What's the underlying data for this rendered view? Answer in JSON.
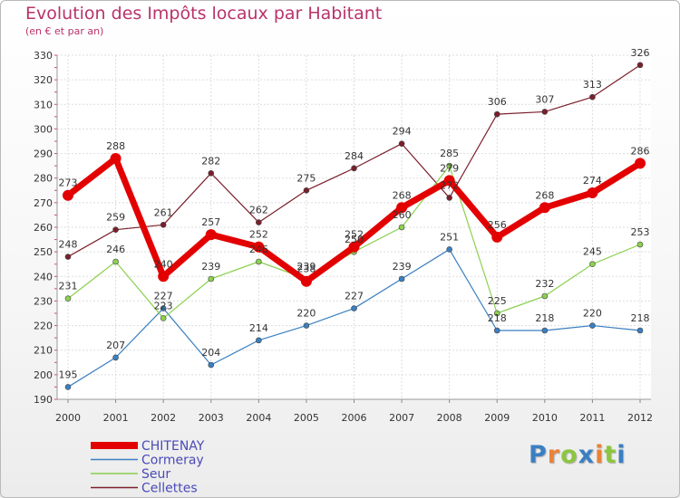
{
  "header": {
    "title": "Evolution des Impôts locaux par Habitant",
    "subtitle": "(en € et par an)"
  },
  "logo": {
    "text": "Proxiti",
    "colors": [
      "#3a7fc1",
      "#e8823a",
      "#8cc63f",
      "#3a7fc1",
      "#e8823a",
      "#8cc63f",
      "#3a7fc1"
    ]
  },
  "chart_data": {
    "type": "line",
    "title": "Evolution des Impôts locaux par Habitant",
    "subtitle": "(en € et par an)",
    "xlabel": "",
    "ylabel": "",
    "categories": [
      "2000",
      "2001",
      "2002",
      "2003",
      "2004",
      "2005",
      "2006",
      "2007",
      "2008",
      "2009",
      "2010",
      "2011",
      "2012"
    ],
    "ylim": [
      190,
      330
    ],
    "yticks": [
      190,
      200,
      210,
      220,
      230,
      240,
      250,
      260,
      270,
      280,
      290,
      300,
      310,
      320,
      330
    ],
    "grid": true,
    "legend_position": "bottom-left",
    "series": [
      {
        "name": "Cellettes",
        "color": "#7a1f2b",
        "values": [
          248,
          259,
          261,
          282,
          262,
          275,
          284,
          294,
          272,
          306,
          307,
          313,
          326
        ]
      },
      {
        "name": "Cormeray",
        "color": "#3a7fc1",
        "values": [
          195,
          207,
          227,
          204,
          214,
          220,
          227,
          239,
          251,
          218,
          218,
          220,
          218
        ]
      },
      {
        "name": "Seur",
        "color": "#8cd04f",
        "values": [
          231,
          246,
          223,
          239,
          246,
          239,
          250,
          260,
          285,
          225,
          232,
          245,
          253
        ]
      },
      {
        "name": "CHITENAY",
        "color": "#e30000",
        "values": [
          273,
          288,
          240,
          257,
          252,
          238,
          252,
          268,
          279,
          256,
          268,
          274,
          286
        ]
      }
    ],
    "legend": [
      "CHITENAY",
      "Cormeray",
      "Seur",
      "Cellettes"
    ]
  }
}
